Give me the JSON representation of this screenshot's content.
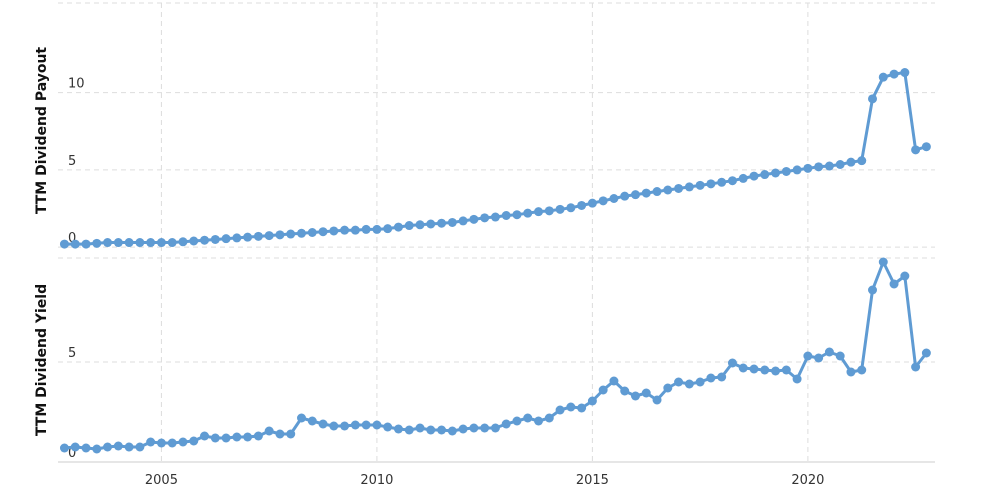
{
  "chart_data": [
    {
      "type": "line",
      "y_label": "TTM Dividend Payout",
      "color": "#5f9bd3",
      "grid": true,
      "xlim": [
        2002.6,
        2022.95
      ],
      "xticks": [
        2005,
        2010,
        2015,
        2020
      ],
      "ylim": [
        -0.7,
        15.8
      ],
      "yticks": [
        0,
        5,
        10
      ],
      "x": [
        2002.75,
        2003,
        2003.25,
        2003.5,
        2003.75,
        2004,
        2004.25,
        2004.5,
        2004.75,
        2005,
        2005.25,
        2005.5,
        2005.75,
        2006,
        2006.25,
        2006.5,
        2006.75,
        2007,
        2007.25,
        2007.5,
        2007.75,
        2008,
        2008.25,
        2008.5,
        2008.75,
        2009,
        2009.25,
        2009.5,
        2009.75,
        2010,
        2010.25,
        2010.5,
        2010.75,
        2011,
        2011.25,
        2011.5,
        2011.75,
        2012,
        2012.25,
        2012.5,
        2012.75,
        2013,
        2013.25,
        2013.5,
        2013.75,
        2014,
        2014.25,
        2014.5,
        2014.75,
        2015,
        2015.25,
        2015.5,
        2015.75,
        2016,
        2016.25,
        2016.5,
        2016.75,
        2017,
        2017.25,
        2017.5,
        2017.75,
        2018,
        2018.25,
        2018.5,
        2018.75,
        2019,
        2019.25,
        2019.5,
        2019.75,
        2020,
        2020.25,
        2020.5,
        2020.75,
        2021,
        2021.25,
        2021.5,
        2021.75,
        2022,
        2022.25,
        2022.5,
        2022.75
      ],
      "values": [
        0.2,
        0.2,
        0.2,
        0.25,
        0.3,
        0.3,
        0.3,
        0.3,
        0.3,
        0.3,
        0.3,
        0.35,
        0.4,
        0.45,
        0.5,
        0.55,
        0.6,
        0.65,
        0.7,
        0.75,
        0.8,
        0.85,
        0.9,
        0.95,
        1.0,
        1.05,
        1.1,
        1.1,
        1.15,
        1.15,
        1.2,
        1.3,
        1.4,
        1.45,
        1.5,
        1.55,
        1.6,
        1.7,
        1.8,
        1.9,
        1.95,
        2.05,
        2.1,
        2.2,
        2.3,
        2.35,
        2.45,
        2.55,
        2.7,
        2.85,
        3.0,
        3.15,
        3.3,
        3.4,
        3.5,
        3.6,
        3.7,
        3.8,
        3.9,
        4.0,
        4.1,
        4.2,
        4.3,
        4.45,
        4.6,
        4.7,
        4.8,
        4.9,
        5.0,
        5.1,
        5.2,
        5.25,
        5.35,
        5.5,
        5.6,
        9.6,
        11.0,
        11.2,
        11.3,
        6.3,
        6.5
      ]
    },
    {
      "type": "line",
      "y_label": "TTM Dividend Yield",
      "color": "#5f9bd3",
      "grid": true,
      "xlim": [
        2002.6,
        2022.95
      ],
      "xticks": [
        2005,
        2010,
        2015,
        2020
      ],
      "ylim": [
        0,
        10.2
      ],
      "yticks": [
        0,
        5
      ],
      "x": [
        2002.75,
        2003,
        2003.25,
        2003.5,
        2003.75,
        2004,
        2004.25,
        2004.5,
        2004.75,
        2005,
        2005.25,
        2005.5,
        2005.75,
        2006,
        2006.25,
        2006.5,
        2006.75,
        2007,
        2007.25,
        2007.5,
        2007.75,
        2008,
        2008.25,
        2008.5,
        2008.75,
        2009,
        2009.25,
        2009.5,
        2009.75,
        2010,
        2010.25,
        2010.5,
        2010.75,
        2011,
        2011.25,
        2011.5,
        2011.75,
        2012,
        2012.25,
        2012.5,
        2012.75,
        2013,
        2013.25,
        2013.5,
        2013.75,
        2014,
        2014.25,
        2014.5,
        2014.75,
        2015,
        2015.25,
        2015.5,
        2015.75,
        2016,
        2016.25,
        2016.5,
        2016.75,
        2017,
        2017.25,
        2017.5,
        2017.75,
        2018,
        2018.25,
        2018.5,
        2018.75,
        2019,
        2019.25,
        2019.5,
        2019.75,
        2020,
        2020.25,
        2020.5,
        2020.75,
        2021,
        2021.25,
        2021.5,
        2021.75,
        2022,
        2022.25,
        2022.5,
        2022.75
      ],
      "values": [
        0.7,
        0.75,
        0.7,
        0.65,
        0.75,
        0.8,
        0.75,
        0.75,
        1.0,
        0.95,
        0.95,
        1.0,
        1.05,
        1.3,
        1.2,
        1.2,
        1.25,
        1.25,
        1.3,
        1.55,
        1.4,
        1.4,
        2.2,
        2.05,
        1.9,
        1.8,
        1.8,
        1.85,
        1.85,
        1.85,
        1.75,
        1.65,
        1.6,
        1.7,
        1.6,
        1.6,
        1.55,
        1.65,
        1.7,
        1.7,
        1.7,
        1.9,
        2.05,
        2.2,
        2.05,
        2.2,
        2.6,
        2.75,
        2.7,
        3.05,
        3.6,
        4.05,
        3.55,
        3.3,
        3.45,
        3.1,
        3.7,
        4.0,
        3.9,
        4.0,
        4.2,
        4.25,
        4.95,
        4.7,
        4.65,
        4.6,
        4.55,
        4.6,
        4.15,
        5.3,
        5.2,
        5.5,
        5.3,
        4.5,
        4.6,
        8.6,
        10.0,
        8.9,
        9.3,
        4.75,
        5.45
      ]
    }
  ]
}
